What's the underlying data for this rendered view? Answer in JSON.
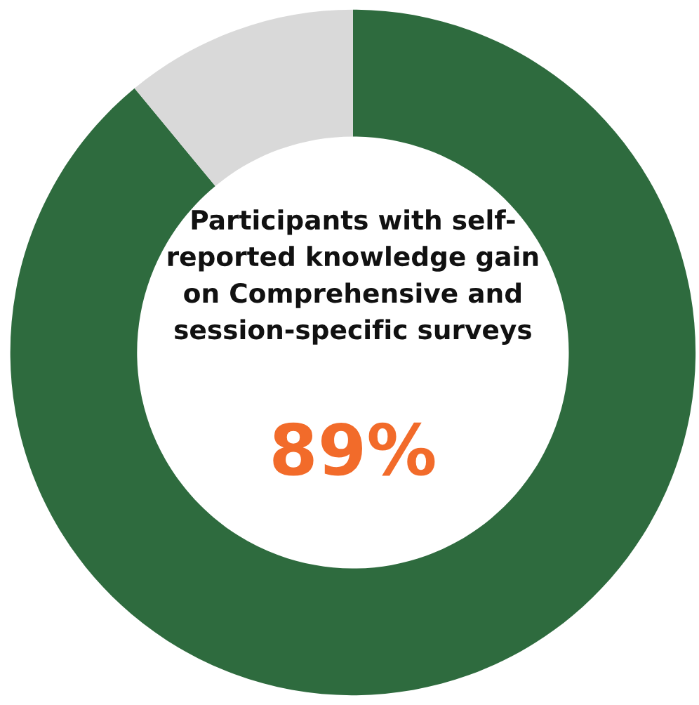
{
  "chart_data": {
    "type": "donut",
    "title": "Participants with self-reported knowledge gain on Comprehensive and session-specific surveys",
    "categories": [
      null,
      null
    ],
    "values": [
      89,
      11
    ],
    "colors": [
      "#2e6b3e",
      "#d9d9d9"
    ],
    "value_labels": [
      "89%",
      null
    ],
    "legend": false
  }
}
